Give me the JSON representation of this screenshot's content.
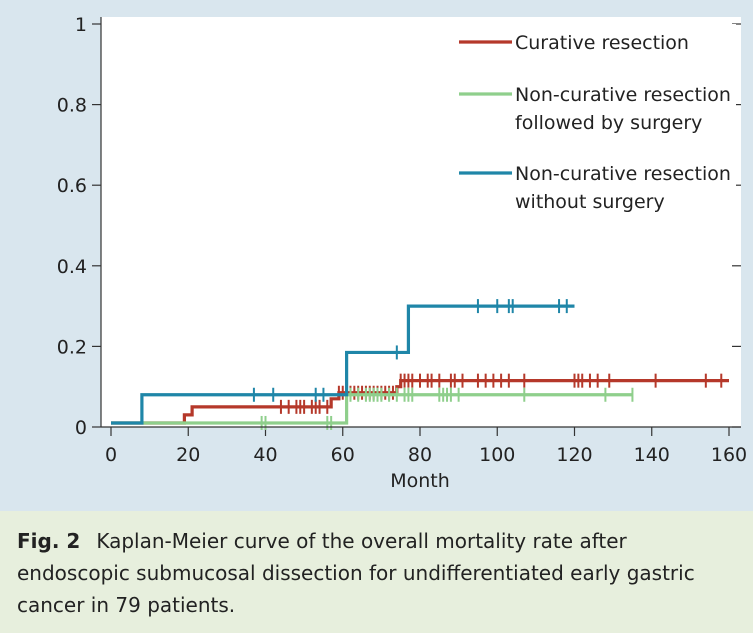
{
  "colors": {
    "figure_bg": "#d9e6ee",
    "plot_bg": "#ffffff",
    "caption_bg": "#e7efdd",
    "curative": "#b5382a",
    "noncurative_surgery": "#8fcf8c",
    "noncurative_nosurgery": "#1f86a8",
    "axis": "#333333"
  },
  "caption": {
    "label": "Fig. 2",
    "text": "Kaplan-Meier curve of the overall mortality rate after endoscopic submucosal dissection for undifferentiated early gastric cancer in 79 patients."
  },
  "chart_data": {
    "type": "line",
    "title": "",
    "xlabel": "Month",
    "ylabel": "",
    "xlim": [
      0,
      160
    ],
    "ylim": [
      0,
      1
    ],
    "xticks": [
      0,
      20,
      40,
      60,
      80,
      100,
      120,
      140,
      160
    ],
    "yticks": [
      {
        "value": 0,
        "label": "0"
      },
      {
        "value": 0.2,
        "label": "0.2"
      },
      {
        "value": 0.4,
        "label": "0.4"
      },
      {
        "value": 0.6,
        "label": "0.6"
      },
      {
        "value": 0.8,
        "label": "0.8"
      },
      {
        "value": 1,
        "label": "1"
      }
    ],
    "legend_position": "top-right",
    "series": [
      {
        "name": "Curative resection",
        "color": "#b5382a",
        "steps": [
          [
            0,
            0.01
          ],
          [
            19,
            0.03
          ],
          [
            21,
            0.05
          ],
          [
            57,
            0.07
          ],
          [
            59,
            0.085
          ],
          [
            74,
            0.1
          ],
          [
            75,
            0.115
          ],
          [
            160,
            0.115
          ]
        ],
        "censored": [
          44,
          46,
          48,
          49,
          50,
          52,
          53,
          54,
          56,
          59,
          60,
          62,
          63,
          64,
          65,
          66,
          67,
          68,
          69,
          70,
          71,
          72,
          73,
          75,
          76,
          77,
          78,
          80,
          82,
          83,
          85,
          88,
          89,
          91,
          95,
          97,
          99,
          101,
          103,
          107,
          120,
          121,
          122,
          124,
          126,
          129,
          141,
          154,
          158
        ]
      },
      {
        "name": "Non-curative resection followed by surgery",
        "color": "#8fcf8c",
        "steps": [
          [
            0,
            0.01
          ],
          [
            61,
            0.01
          ],
          [
            61,
            0.08
          ],
          [
            135,
            0.08
          ]
        ],
        "censored": [
          39,
          40,
          56,
          57,
          61,
          62,
          64,
          66,
          67,
          68,
          69,
          70,
          72,
          74,
          76,
          77,
          78,
          85,
          86,
          87,
          88,
          90,
          107,
          128,
          135
        ]
      },
      {
        "name": "Non-curative resection without surgery",
        "color": "#1f86a8",
        "steps": [
          [
            0,
            0.01
          ],
          [
            8,
            0.01
          ],
          [
            8,
            0.08
          ],
          [
            61,
            0.08
          ],
          [
            61,
            0.185
          ],
          [
            77,
            0.185
          ],
          [
            77,
            0.3
          ],
          [
            120,
            0.3
          ]
        ],
        "censored": [
          37,
          42,
          53,
          55,
          74,
          95,
          100,
          103,
          104,
          116,
          118
        ]
      }
    ]
  }
}
